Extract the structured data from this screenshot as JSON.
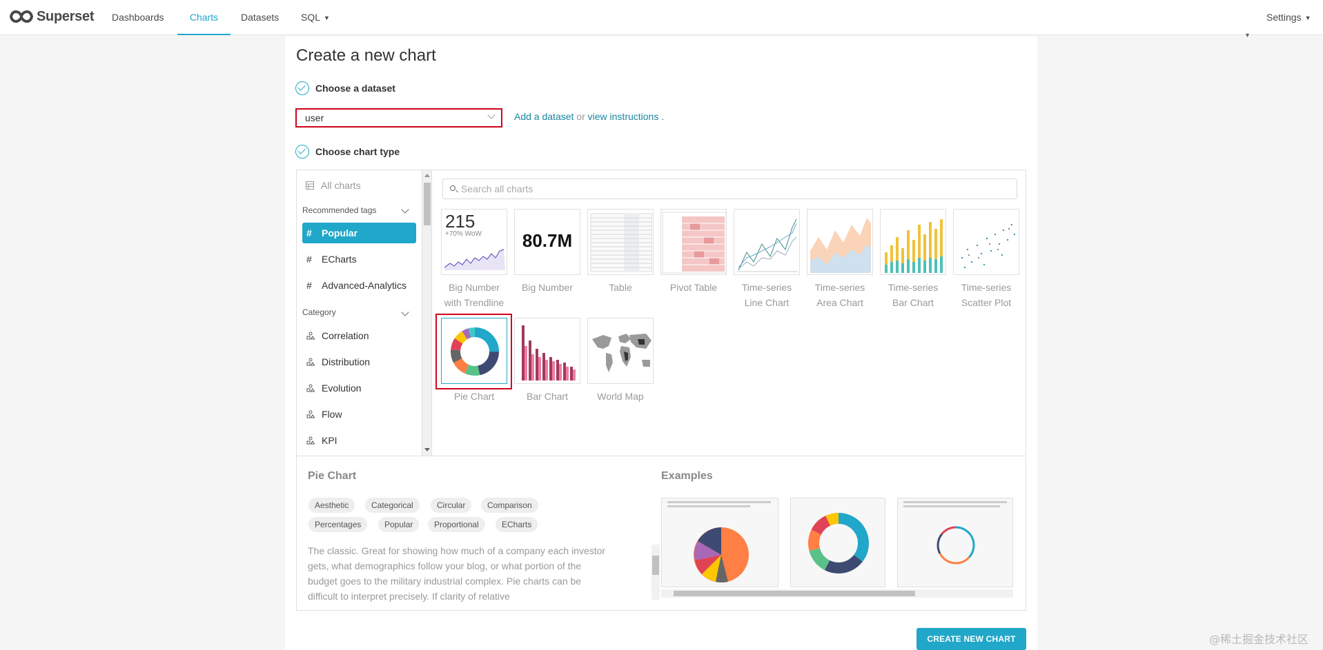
{
  "nav": {
    "brand": "Superset",
    "items": [
      {
        "label": "Dashboards"
      },
      {
        "label": "Charts"
      },
      {
        "label": "Datasets"
      },
      {
        "label": "SQL"
      }
    ],
    "settings": "Settings"
  },
  "page": {
    "title": "Create a new chart",
    "step1": "Choose a dataset",
    "step2": "Choose chart type"
  },
  "dataset": {
    "value": "user",
    "add_link": "Add a dataset",
    "or_text": "or",
    "view_link": "view instructions",
    "period": "."
  },
  "sidebar": {
    "all_charts": "All charts",
    "recommended_tags": "Recommended tags",
    "tags": [
      {
        "label": "Popular"
      },
      {
        "label": "ECharts"
      },
      {
        "label": "Advanced-Analytics"
      }
    ],
    "category": "Category",
    "categories": [
      {
        "label": "Correlation"
      },
      {
        "label": "Distribution"
      },
      {
        "label": "Evolution"
      },
      {
        "label": "Flow"
      },
      {
        "label": "KPI"
      }
    ]
  },
  "search": {
    "placeholder": "Search all charts"
  },
  "charts": [
    {
      "line1": "Big Number",
      "line2": "with Trendline"
    },
    {
      "line1": "Big Number",
      "line2": ""
    },
    {
      "line1": "Table",
      "line2": ""
    },
    {
      "line1": "Pivot Table",
      "line2": ""
    },
    {
      "line1": "Time-series",
      "line2": "Line Chart"
    },
    {
      "line1": "Time-series",
      "line2": "Area Chart"
    },
    {
      "line1": "Time-series",
      "line2": "Bar Chart"
    },
    {
      "line1": "Time-series",
      "line2": "Scatter Plot"
    },
    {
      "line1": "Pie Chart",
      "line2": ""
    },
    {
      "line1": "Bar Chart",
      "line2": ""
    },
    {
      "line1": "World Map",
      "line2": ""
    }
  ],
  "thumbs": {
    "big_number_value": "215",
    "big_number_sub": "+70% WoW",
    "big_number_total": "80.7M"
  },
  "details": {
    "title": "Pie Chart",
    "examples_title": "Examples",
    "tags": [
      "Aesthetic",
      "Categorical",
      "Circular",
      "Comparison",
      "Percentages",
      "Popular",
      "Proportional",
      "ECharts"
    ],
    "description": "The classic. Great for showing how much of a company each investor gets, what demographics follow your blog, or what portion of the budget goes to the military industrial complex. Pie charts can be difficult to interpret precisely. If clarity of relative"
  },
  "actions": {
    "create": "CREATE NEW CHART"
  },
  "watermark": "@稀土掘金技术社区",
  "colors": {
    "accent": "#20a7c9",
    "highlight": "#d0021b"
  }
}
